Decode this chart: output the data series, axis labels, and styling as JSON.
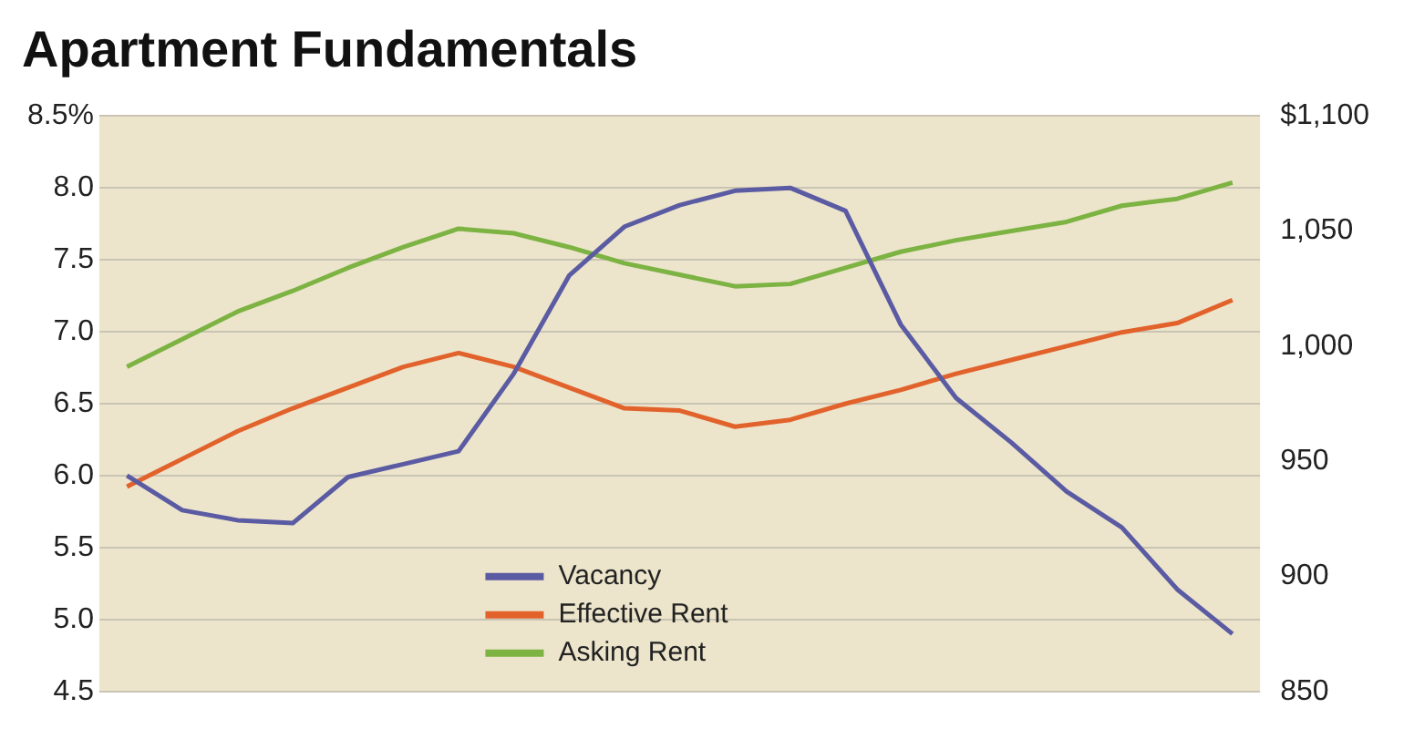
{
  "chart_data": {
    "type": "line",
    "title": "Apartment Fundamentals",
    "categories": [
      null,
      null,
      null,
      null,
      null,
      null,
      null,
      null,
      null,
      null,
      null,
      null,
      null,
      null,
      null,
      null,
      null,
      null,
      null,
      null,
      null
    ],
    "series": [
      {
        "name": "Vacancy",
        "color": "#5b5ba3",
        "values": [
          6.0,
          5.76,
          5.69,
          5.67,
          5.99,
          6.08,
          6.17,
          6.71,
          7.39,
          7.73,
          7.88,
          7.98,
          8.0,
          7.84,
          7.05,
          6.54,
          6.23,
          5.89,
          5.64,
          5.21,
          4.9
        ]
      },
      {
        "name": "Effective Rent",
        "color": "#e2622c",
        "axis": "y2",
        "values": [
          939,
          951,
          963,
          973,
          982,
          991,
          997,
          991,
          982,
          973,
          972,
          965,
          968,
          975,
          981,
          988,
          994,
          1000,
          1006,
          1010,
          1020
        ]
      },
      {
        "name": "Asking Rent",
        "color": "#7cb342",
        "axis": "y2",
        "values": [
          991,
          1003,
          1015,
          1024,
          1034,
          1043,
          1051,
          1049,
          1043,
          1036,
          1031,
          1026,
          1027,
          1034,
          1041,
          1046,
          1050,
          1054,
          1061,
          1064,
          1071
        ]
      }
    ],
    "ylim": [
      4.5,
      8.5
    ],
    "yticks": [
      {
        "value": 4.5,
        "label": "4.5"
      },
      {
        "value": 5,
        "label": "5.0"
      },
      {
        "value": 5.5,
        "label": "5.5"
      },
      {
        "value": 6,
        "label": "6.0"
      },
      {
        "value": 6.5,
        "label": "6.5"
      },
      {
        "value": 7,
        "label": "7.0"
      },
      {
        "value": 7.5,
        "label": "7.5"
      },
      {
        "value": 8,
        "label": "8.0"
      },
      {
        "value": 8.5,
        "label": "8.5%"
      }
    ],
    "y2lim": [
      850,
      1100
    ],
    "y2ticks": [
      850,
      900,
      950,
      {
        "value": 1000,
        "label": "1,000"
      },
      {
        "value": 1050,
        "label": "1,050"
      },
      {
        "value": 1100,
        "label": "$1,100"
      }
    ],
    "grid": "y",
    "legend": "bottom",
    "marker": "none",
    "line_style": "solid"
  }
}
